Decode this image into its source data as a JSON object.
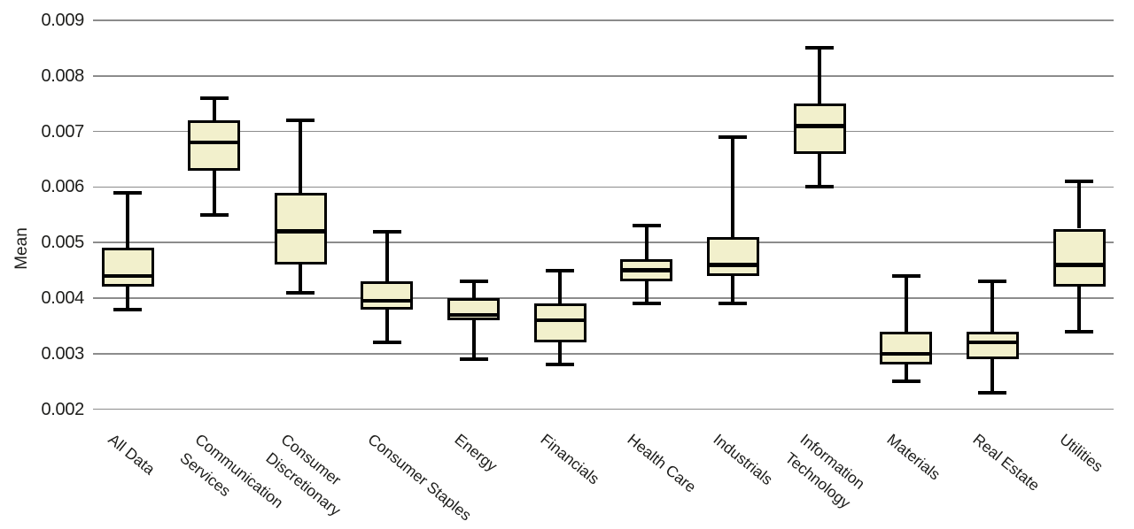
{
  "chart_data": {
    "type": "box",
    "title": "",
    "xlabel": "",
    "ylabel": "Mean",
    "ylim": [
      0.002,
      0.009
    ],
    "yticks": [
      0.009,
      0.008,
      0.007,
      0.006,
      0.005,
      0.004,
      0.003,
      0.002
    ],
    "ytick_format": "3 decimals",
    "grid": "horizontal gridlines only, no axis spines, no tick marks",
    "legend": "none",
    "categories": [
      "All Data",
      "Communication Services",
      "Consumer Discretionary",
      "Consumer Staples",
      "Energy",
      "Financials",
      "Health Care",
      "Industrials",
      "Information Technology",
      "Materials",
      "Real Estate",
      "Utilities"
    ],
    "boxes": [
      {
        "category": "All Data",
        "label": "All Data",
        "whisker_low": 0.0038,
        "q1": 0.0042,
        "median": 0.0044,
        "q3": 0.0049,
        "whisker_high": 0.0059
      },
      {
        "category": "Communication Services",
        "label": "Communication\nServices",
        "whisker_low": 0.0055,
        "q1": 0.0063,
        "median": 0.0068,
        "q3": 0.0072,
        "whisker_high": 0.0076
      },
      {
        "category": "Consumer Discretionary",
        "label": "Consumer\nDiscretionary",
        "whisker_low": 0.0041,
        "q1": 0.0046,
        "median": 0.0052,
        "q3": 0.0059,
        "whisker_high": 0.0072
      },
      {
        "category": "Consumer Staples",
        "label": "Consumer Staples",
        "whisker_low": 0.0032,
        "q1": 0.0038,
        "median": 0.00395,
        "q3": 0.0043,
        "whisker_high": 0.0052
      },
      {
        "category": "Energy",
        "label": "Energy",
        "whisker_low": 0.0029,
        "q1": 0.0036,
        "median": 0.0037,
        "q3": 0.004,
        "whisker_high": 0.0043
      },
      {
        "category": "Financials",
        "label": "Financials",
        "whisker_low": 0.0028,
        "q1": 0.0032,
        "median": 0.0036,
        "q3": 0.0039,
        "whisker_high": 0.0045
      },
      {
        "category": "Health Care",
        "label": "Health Care",
        "whisker_low": 0.0039,
        "q1": 0.0043,
        "median": 0.0045,
        "q3": 0.0047,
        "whisker_high": 0.0053
      },
      {
        "category": "Industrials",
        "label": "Industrials",
        "whisker_low": 0.0039,
        "q1": 0.0044,
        "median": 0.0046,
        "q3": 0.0051,
        "whisker_high": 0.0069
      },
      {
        "category": "Information Technology",
        "label": "Information\nTechnology",
        "whisker_low": 0.006,
        "q1": 0.0066,
        "median": 0.0071,
        "q3": 0.0075,
        "whisker_high": 0.0085
      },
      {
        "category": "Materials",
        "label": "Materials",
        "whisker_low": 0.0025,
        "q1": 0.0028,
        "median": 0.003,
        "q3": 0.0034,
        "whisker_high": 0.0044
      },
      {
        "category": "Real Estate",
        "label": "Real Estate",
        "whisker_low": 0.0023,
        "q1": 0.0029,
        "median": 0.0032,
        "q3": 0.0034,
        "whisker_high": 0.0043
      },
      {
        "category": "Utilities",
        "label": "Utilities",
        "whisker_low": 0.0034,
        "q1": 0.0042,
        "median": 0.0046,
        "q3": 0.00525,
        "whisker_high": 0.0061
      }
    ],
    "colors": {
      "box_fill": "#f2f0cc",
      "box_border": "#000000",
      "median": "#000000",
      "whisker": "#000000",
      "gridline": "#8c8c8c",
      "text": "#1d1d1b",
      "background": "#ffffff"
    }
  }
}
